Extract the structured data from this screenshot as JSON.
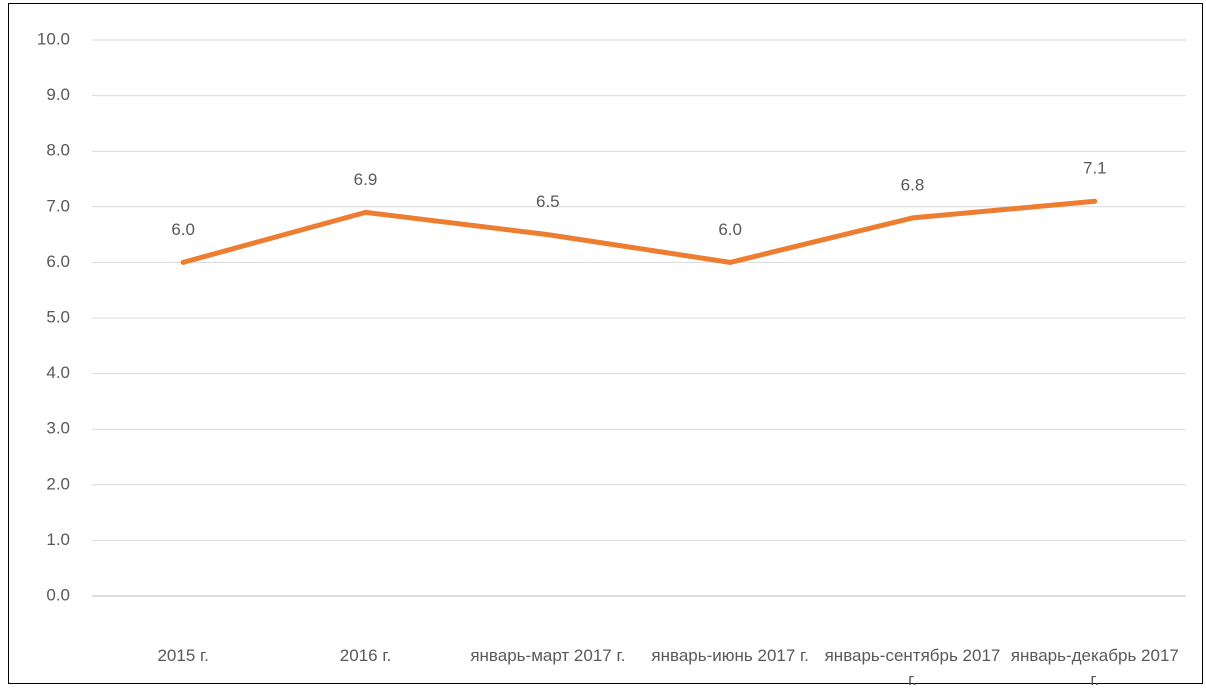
{
  "chart_data": {
    "type": "line",
    "categories": [
      "2015 г.",
      "2016 г.",
      "январь-март 2017 г.",
      "январь-июнь 2017 г.",
      "январь-сентябрь 2017 г.",
      "январь-декабрь 2017 г."
    ],
    "series": [
      {
        "color": "#ed7d31",
        "values": [
          6.0,
          6.9,
          6.5,
          6.0,
          6.8,
          7.1
        ],
        "value_labels": [
          "6.0",
          "6.9",
          "6.5",
          "6.0",
          "6.8",
          "7.1"
        ]
      }
    ],
    "ylim": [
      0,
      10
    ],
    "yticks": [
      {
        "value": 0,
        "label": "0.0"
      },
      {
        "value": 1,
        "label": "1.0"
      },
      {
        "value": 2,
        "label": "2.0"
      },
      {
        "value": 3,
        "label": "3.0"
      },
      {
        "value": 4,
        "label": "4.0"
      },
      {
        "value": 5,
        "label": "5.0"
      },
      {
        "value": 6,
        "label": "6.0"
      },
      {
        "value": 7,
        "label": "7.0"
      },
      {
        "value": 8,
        "label": "8.0"
      },
      {
        "value": 9,
        "label": "9.0"
      },
      {
        "value": 10,
        "label": "10.0"
      }
    ],
    "grid": true
  }
}
